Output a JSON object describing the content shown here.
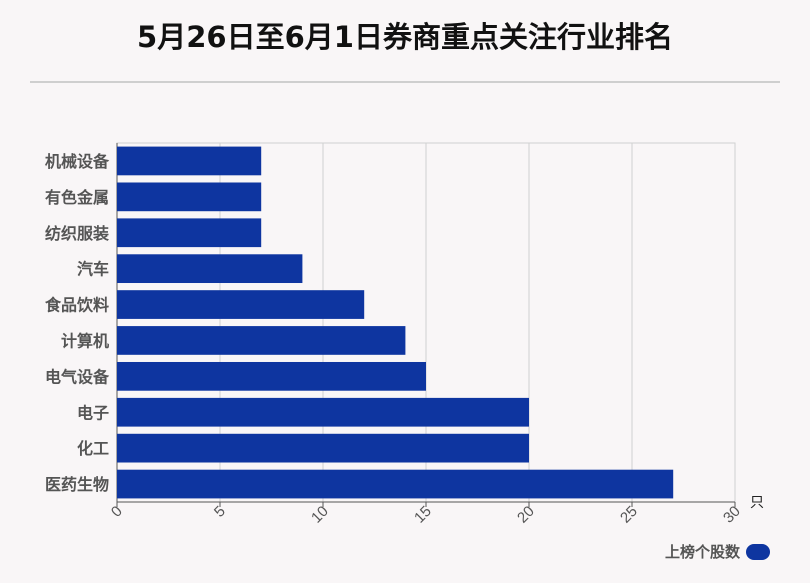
{
  "title": "5月26日至6月1日券商重点关注行业排名",
  "legend": {
    "label": "上榜个股数",
    "color": "#0e35a0"
  },
  "chart_data": {
    "type": "bar",
    "orientation": "horizontal",
    "categories": [
      "机械设备",
      "有色金属",
      "纺织服装",
      "汽车",
      "食品饮料",
      "计算机",
      "电气设备",
      "电子",
      "化工",
      "医药生物"
    ],
    "series": [
      {
        "name": "上榜个股数",
        "values": [
          7,
          7,
          7,
          9,
          12,
          14,
          15,
          20,
          20,
          27
        ]
      }
    ],
    "xlim": [
      0,
      30
    ],
    "xticks": [
      "0",
      "5",
      "10",
      "15",
      "20",
      "25",
      "30"
    ],
    "xunit": "只",
    "grid": true,
    "legend_position": "bottom-right",
    "bar_color": "#0e35a0"
  }
}
